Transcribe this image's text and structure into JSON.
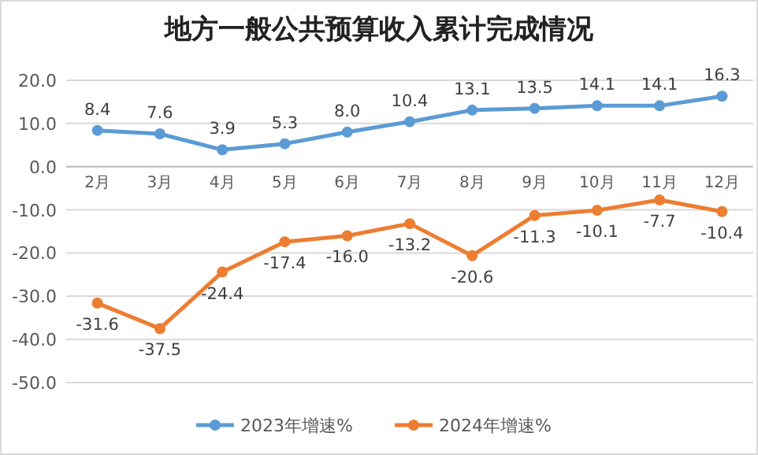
{
  "chart_data": {
    "type": "line",
    "title": "地方一般公共预算收入累计完成情况",
    "categories": [
      "2月",
      "3月",
      "4月",
      "5月",
      "6月",
      "7月",
      "8月",
      "9月",
      "10月",
      "11月",
      "12月"
    ],
    "series": [
      {
        "name": "2023年增速%",
        "color": "#5b9bd5",
        "values": [
          8.4,
          7.6,
          3.9,
          5.3,
          8.0,
          10.4,
          13.1,
          13.5,
          14.1,
          14.1,
          16.3
        ],
        "value_labels": [
          "8.4",
          "7.6",
          "3.9",
          "5.3",
          "8.0",
          "10.4",
          "13.1",
          "13.5",
          "14.1",
          "14.1",
          "16.3"
        ]
      },
      {
        "name": "2024年增速%",
        "color": "#ed7d31",
        "values": [
          -31.6,
          -37.5,
          -24.4,
          -17.4,
          -16.0,
          -13.2,
          -20.6,
          -11.3,
          -10.1,
          -7.7,
          -10.4
        ],
        "value_labels": [
          "-31.6",
          "-37.5",
          "-24.4",
          "-17.4",
          "-16.0",
          "-13.2",
          "-20.6",
          "-11.3",
          "-10.1",
          "-7.7",
          "-10.4"
        ]
      }
    ],
    "ylim": [
      -50,
      20
    ],
    "yticks": [
      {
        "value": 20,
        "label": "20.0"
      },
      {
        "value": 10,
        "label": "10.0"
      },
      {
        "value": 0,
        "label": "0.0"
      },
      {
        "value": -10,
        "label": "-10.0"
      },
      {
        "value": -20,
        "label": "-20.0"
      },
      {
        "value": -30,
        "label": "-30.0"
      },
      {
        "value": -40,
        "label": "-40.0"
      },
      {
        "value": -50,
        "label": "-50.0"
      }
    ],
    "grid": "y",
    "legend": "bottom",
    "marker": "circle",
    "line_style": "solid"
  }
}
